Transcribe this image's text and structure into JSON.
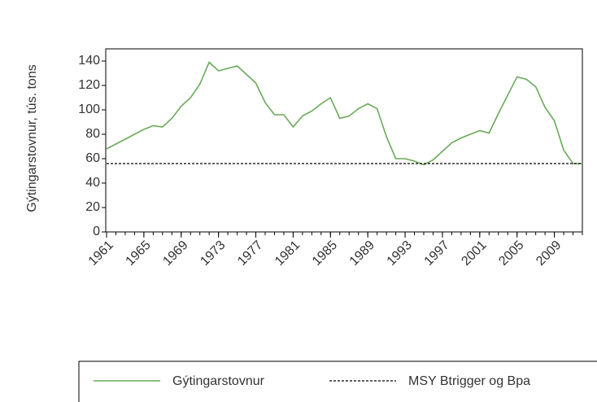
{
  "chart_data": {
    "type": "line",
    "y_label": "Gýtingarstovnur, tús. tons",
    "x": [
      1961,
      1962,
      1963,
      1964,
      1965,
      1966,
      1967,
      1968,
      1969,
      1970,
      1971,
      1972,
      1973,
      1974,
      1975,
      1976,
      1977,
      1978,
      1979,
      1980,
      1981,
      1982,
      1983,
      1984,
      1985,
      1986,
      1987,
      1988,
      1989,
      1990,
      1991,
      1992,
      1993,
      1994,
      1995,
      1996,
      1997,
      1998,
      1999,
      2000,
      2001,
      2002,
      2003,
      2004,
      2005,
      2006,
      2007,
      2008,
      2009,
      2010,
      2011,
      2012
    ],
    "series": [
      {
        "name": "Gýtingarstovnur",
        "color": "#6aaa5a",
        "dashed": false,
        "values": [
          68,
          72,
          76,
          80,
          84,
          87,
          86,
          93,
          103,
          110,
          121,
          139,
          132,
          134,
          136,
          129,
          122,
          106,
          96,
          96,
          86,
          95,
          99,
          105,
          110,
          93,
          95,
          101,
          105,
          101,
          78,
          60,
          60,
          58,
          55,
          59,
          66,
          73,
          77,
          80,
          83,
          81,
          97,
          112,
          127,
          125,
          119,
          102,
          91,
          67,
          56,
          56
        ]
      },
      {
        "name": "MSY Btrigger og Bpa",
        "color": "#000000",
        "dashed": true,
        "values": [
          56,
          56,
          56,
          56,
          56,
          56,
          56,
          56,
          56,
          56,
          56,
          56,
          56,
          56,
          56,
          56,
          56,
          56,
          56,
          56,
          56,
          56,
          56,
          56,
          56,
          56,
          56,
          56,
          56,
          56,
          56,
          56,
          56,
          56,
          56,
          56,
          56,
          56,
          56,
          56,
          56,
          56,
          56,
          56,
          56,
          56,
          56,
          56,
          56,
          56,
          56,
          56
        ]
      }
    ],
    "xlim": [
      1961,
      2012
    ],
    "xticks": [
      1961,
      1965,
      1969,
      1973,
      1977,
      1981,
      1985,
      1989,
      1993,
      1997,
      2001,
      2005,
      2009
    ],
    "ylim": [
      0,
      150
    ],
    "yticks": [
      0,
      20,
      40,
      60,
      80,
      100,
      120,
      140
    ]
  }
}
